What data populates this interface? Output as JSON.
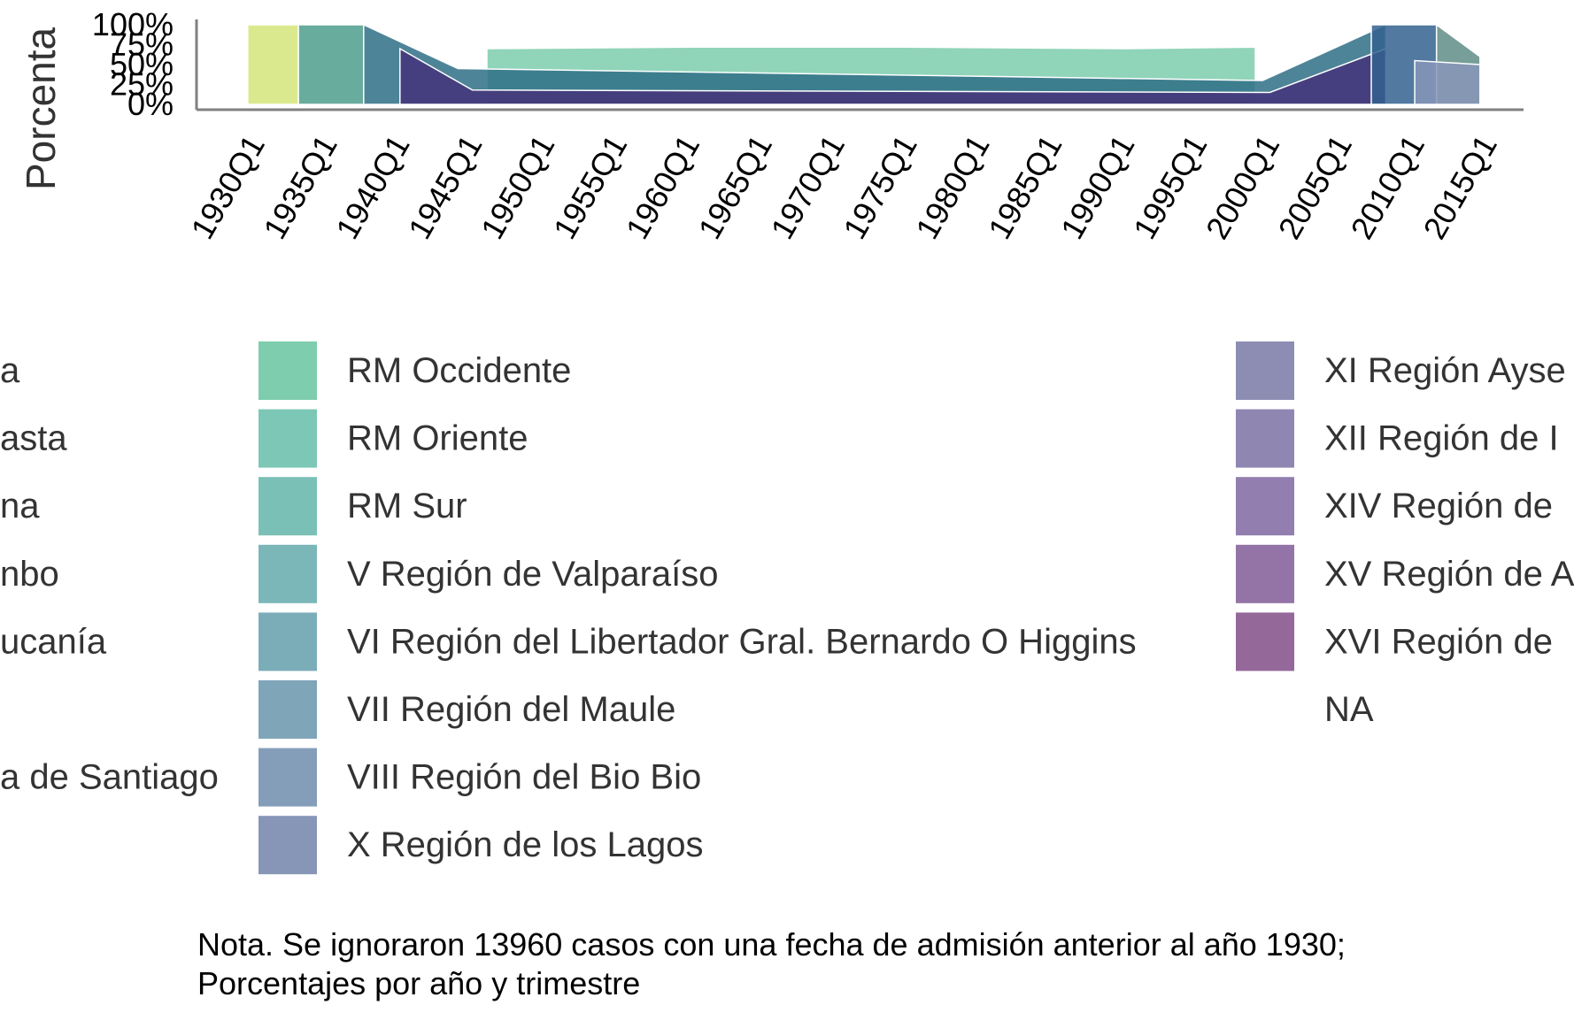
{
  "chart_data": {
    "type": "area",
    "stacked": "percent",
    "title": "",
    "ylabel": "Porcenta",
    "xlabel": "",
    "y_tick_labels": [
      "0%",
      "25%",
      "50%",
      "75%",
      "100%"
    ],
    "y_tick_values": [
      0,
      25,
      50,
      75,
      100
    ],
    "ylim": [
      0,
      100
    ],
    "x_tick_labels": [
      "1930Q1",
      "1935Q1",
      "1940Q1",
      "1945Q1",
      "1950Q1",
      "1955Q1",
      "1960Q1",
      "1965Q1",
      "1970Q1",
      "1975Q1",
      "1980Q1",
      "1985Q1",
      "1990Q1",
      "1995Q1",
      "2000Q1",
      "2005Q1",
      "2010Q1",
      "2015Q1"
    ],
    "x_tick_years": [
      1930,
      1935,
      1940,
      1945,
      1950,
      1955,
      1960,
      1965,
      1970,
      1975,
      1980,
      1985,
      1990,
      1995,
      2000,
      2005,
      2010,
      2015
    ],
    "x_range": [
      1930,
      2015
    ],
    "legend_position": "bottom",
    "legend_columns": [
      [
        {
          "label": "a",
          "color": ""
        },
        {
          "label": "asta",
          "color": ""
        },
        {
          "label": "na",
          "color": ""
        },
        {
          "label": "nbo",
          "color": ""
        },
        {
          "label": "ucanía",
          "color": ""
        },
        {
          "label": "",
          "color": ""
        },
        {
          "label": "a de Santiago",
          "color": ""
        }
      ],
      [
        {
          "label": "RM Occidente",
          "color": "#7dcdae"
        },
        {
          "label": "RM Oriente",
          "color": "#7cc7b6"
        },
        {
          "label": "RM Sur",
          "color": "#7bc0b7"
        },
        {
          "label": "V Región de Valparaíso",
          "color": "#7bb7b9"
        },
        {
          "label": "VI Región del Libertador Gral. Bernardo O Higgins",
          "color": "#7badb9"
        },
        {
          "label": "VII Región del Maule",
          "color": "#7fa5b8"
        },
        {
          "label": "VIII Región del Bio Bio",
          "color": "#849db9"
        },
        {
          "label": "X Región de los Lagos",
          "color": "#8795b7"
        }
      ],
      [
        {
          "label": "XI Región Ayse",
          "color": "#8d8db4"
        },
        {
          "label": "XII Región de I",
          "color": "#9086b2"
        },
        {
          "label": "XIV Región de",
          "color": "#927eaf"
        },
        {
          "label": "XV Región de A",
          "color": "#9474a6"
        },
        {
          "label": "XVI Región de",
          "color": "#95689a"
        },
        {
          "label": "NA",
          "color": ""
        }
      ]
    ],
    "series": [
      {
        "color": "#d5e57a",
        "x": [
          1929.5,
          1932.5,
          1933.0
        ],
        "values": [
          100,
          100,
          100
        ]
      },
      {
        "color": "#4d9e8c",
        "x": [
          1933.0,
          1937.5
        ],
        "values": [
          100,
          100
        ]
      },
      {
        "color": "#7dcdae",
        "x": [
          1946,
          1960,
          1975,
          1990,
          1999
        ],
        "values": [
          70,
          72,
          72,
          70,
          72
        ]
      },
      {
        "color": "#2f6e86",
        "x": [
          1937.5,
          1944,
          1999.5,
          2008
        ],
        "values": [
          100,
          45,
          30,
          100
        ]
      },
      {
        "color": "#45327a",
        "x": [
          1940,
          1945,
          2000,
          2008
        ],
        "values": [
          70,
          18,
          15,
          70
        ]
      },
      {
        "color": "#34628f",
        "x": [
          2007,
          2011.5
        ],
        "values": [
          100,
          100
        ]
      },
      {
        "color": "#5f8d86",
        "x": [
          2011.5,
          2014.5
        ],
        "values": [
          100,
          60
        ]
      },
      {
        "color": "#8795b7",
        "x": [
          2010,
          2014.5
        ],
        "values": [
          55,
          50
        ]
      }
    ]
  },
  "note": {
    "line1": "Nota. Se ignoraron 13960 casos con una fecha de admisión anterior al año 1930;",
    "line2": "Porcentajes por año y trimestre"
  }
}
